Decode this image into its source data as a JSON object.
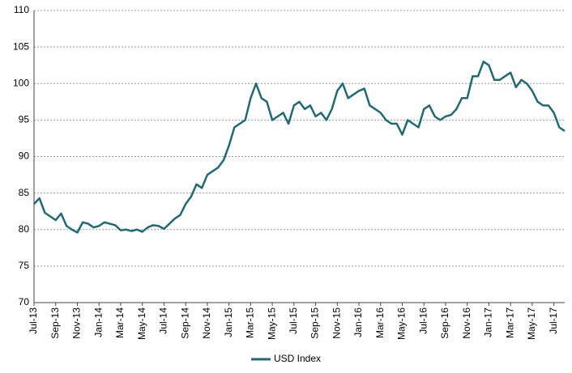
{
  "chart_data": {
    "type": "line",
    "categories": [
      "Jul-13",
      null,
      null,
      null,
      "Sep-13",
      null,
      null,
      null,
      "Nov-13",
      null,
      null,
      null,
      "Jan-14",
      null,
      null,
      null,
      "Mar-14",
      null,
      null,
      null,
      "May-14",
      null,
      null,
      null,
      "Jul-14",
      null,
      null,
      null,
      "Sep-14",
      null,
      null,
      null,
      "Nov-14",
      null,
      null,
      null,
      "Jan-15",
      null,
      null,
      null,
      "Mar-15",
      null,
      null,
      null,
      "May-15",
      null,
      null,
      null,
      "Jul-15",
      null,
      null,
      null,
      "Sep-15",
      null,
      null,
      null,
      "Nov-15",
      null,
      null,
      null,
      "Jan-16",
      null,
      null,
      null,
      "Mar-16",
      null,
      null,
      null,
      "May-16",
      null,
      null,
      null,
      "Jul-16",
      null,
      null,
      null,
      "Sep-16",
      null,
      null,
      null,
      "Nov-16",
      null,
      null,
      null,
      "Jan-17",
      null,
      null,
      null,
      "Mar-17",
      null,
      null,
      null,
      "May-17",
      null,
      null,
      null,
      "Jul-17",
      null,
      null
    ],
    "series": [
      {
        "name": "USD Index",
        "color": "#1f6a77",
        "values": [
          83.5,
          84.3,
          82.3,
          81.8,
          81.3,
          82.2,
          80.5,
          80.0,
          79.6,
          81.0,
          80.8,
          80.3,
          80.5,
          81.0,
          80.8,
          80.6,
          79.9,
          80.0,
          79.8,
          80.0,
          79.7,
          80.3,
          80.6,
          80.5,
          80.1,
          80.8,
          81.5,
          82.0,
          83.5,
          84.5,
          86.2,
          85.7,
          87.5,
          88.0,
          88.5,
          89.5,
          91.5,
          94.0,
          94.5,
          95.0,
          98.0,
          100.0,
          98.0,
          97.5,
          95.0,
          95.5,
          96.0,
          94.5,
          97.0,
          97.5,
          96.5,
          97.0,
          95.5,
          96.0,
          95.0,
          96.5,
          99.0,
          100.0,
          98.0,
          98.5,
          99.0,
          99.3,
          97.0,
          96.5,
          96.0,
          95.0,
          94.5,
          94.5,
          93.0,
          95.0,
          94.5,
          94.0,
          96.5,
          97.0,
          95.5,
          95.0,
          95.5,
          95.7,
          96.5,
          98.0,
          98.0,
          101.0,
          101.0,
          103.0,
          102.5,
          100.5,
          100.5,
          101.0,
          101.5,
          99.5,
          100.5,
          100.0,
          99.0,
          97.5,
          97.0,
          97.0,
          96.0,
          94.0,
          93.5
        ]
      }
    ],
    "ylim": [
      70,
      110
    ],
    "yticks": [
      70,
      75,
      80,
      85,
      90,
      95,
      100,
      105,
      110
    ],
    "grid": true
  }
}
